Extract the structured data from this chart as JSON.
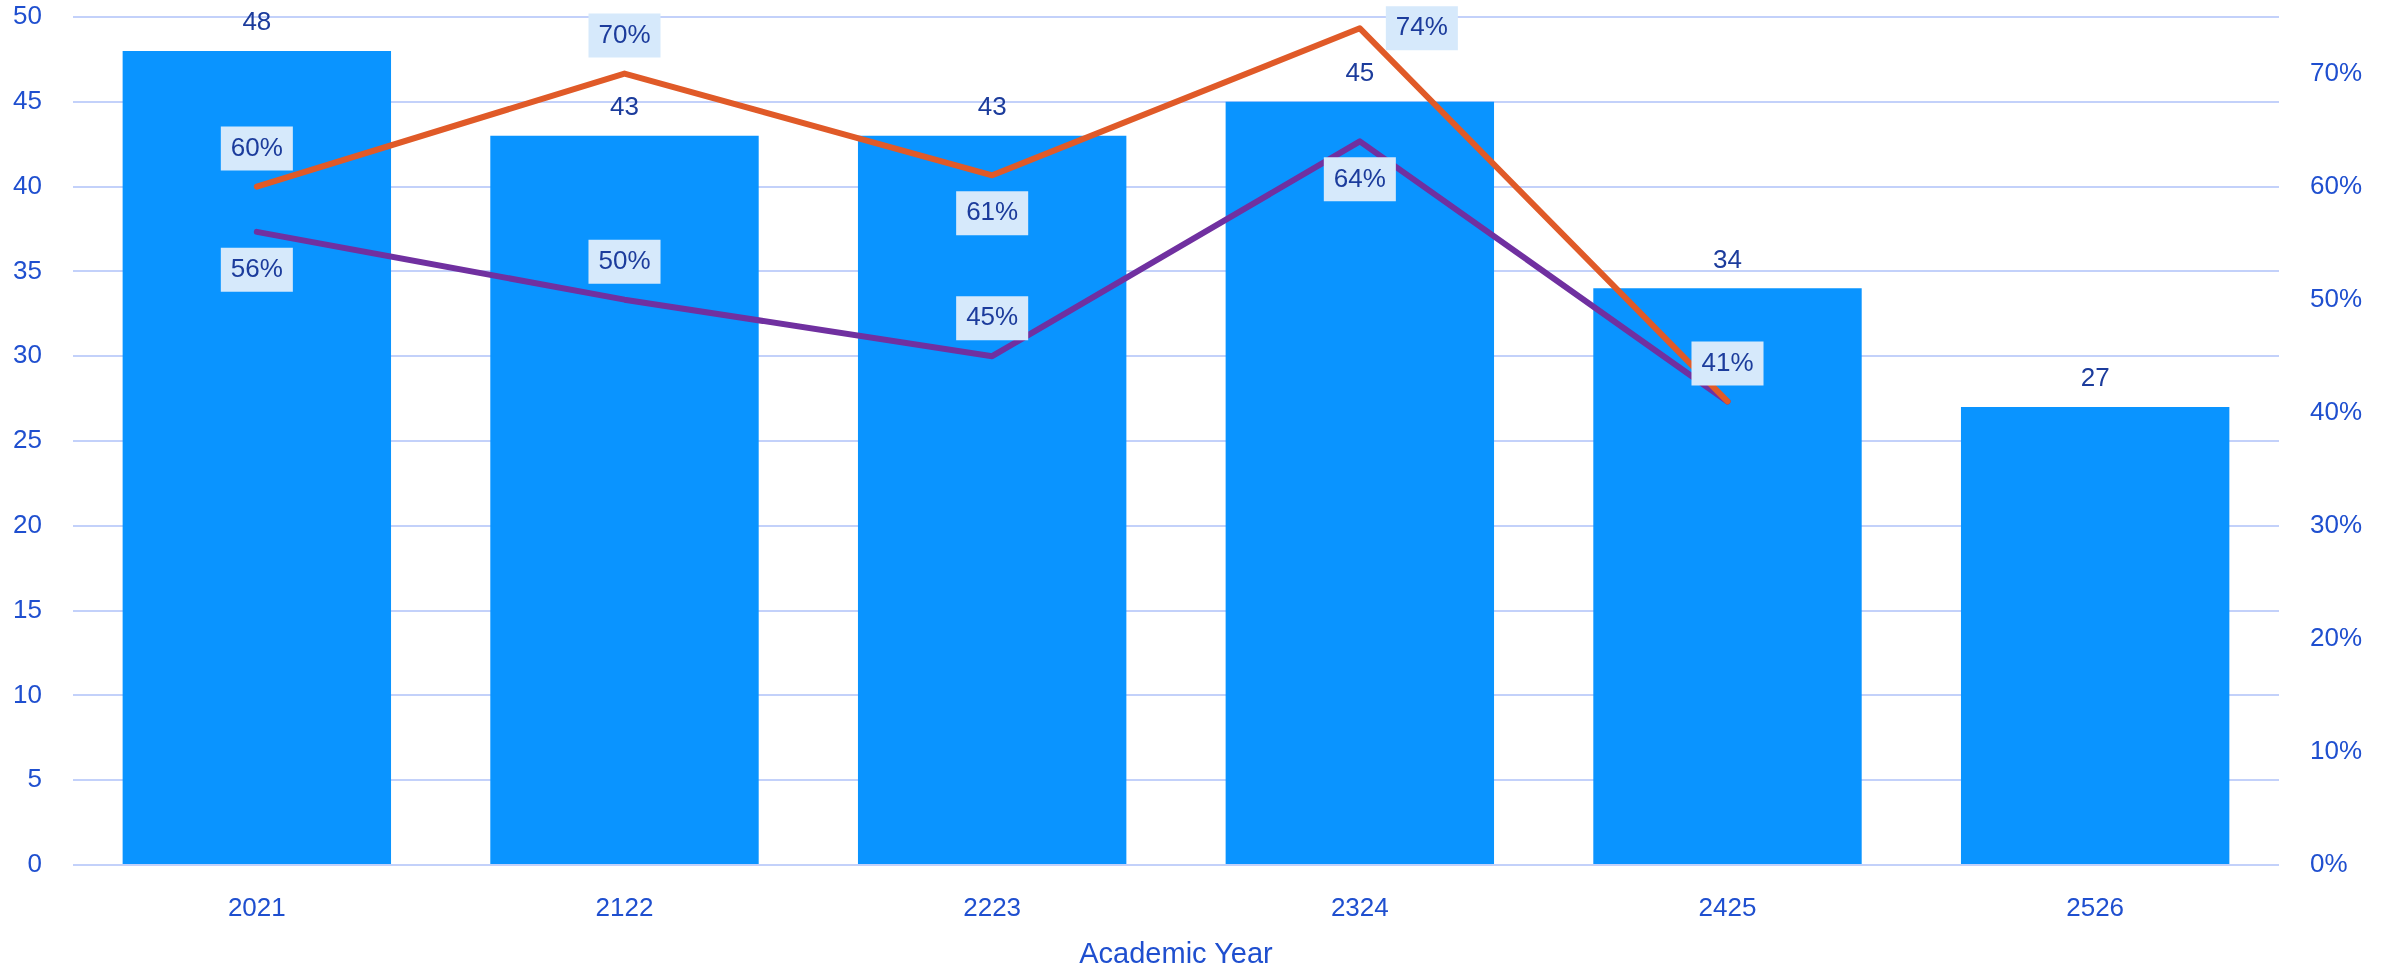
{
  "chart_data": {
    "type": "bar",
    "xlabel": "Academic Year",
    "categories": [
      "2021",
      "2122",
      "2223",
      "2324",
      "2425",
      "2526"
    ],
    "series": [
      {
        "color": "#0a94ff",
        "values": [
          48,
          43,
          43,
          45,
          34,
          27
        ],
        "value_labels": [
          "48",
          "43",
          "43",
          "45",
          "34",
          "27"
        ]
      },
      {
        "type": "line",
        "axis": "y2",
        "color": "#e05a28",
        "values": [
          60,
          70,
          61,
          74,
          41,
          null
        ],
        "value_labels": [
          "60%",
          "70%",
          "61%",
          "74%",
          null,
          null
        ]
      },
      {
        "type": "line",
        "axis": "y2",
        "color": "#7030a0",
        "values": [
          56,
          50,
          45,
          64,
          41,
          null
        ],
        "value_labels": [
          "56%",
          "50%",
          "45%",
          "64%",
          "41%",
          null
        ]
      }
    ],
    "ylim": [
      0,
      50
    ],
    "yticks": [
      0,
      5,
      10,
      15,
      20,
      25,
      30,
      35,
      40,
      45,
      50
    ],
    "y2lim": [
      0,
      75
    ],
    "y2ticks": [
      {
        "value": 0,
        "label": "0%"
      },
      {
        "value": 10,
        "label": "10%"
      },
      {
        "value": 20,
        "label": "20%"
      },
      {
        "value": 30,
        "label": "30%"
      },
      {
        "value": 40,
        "label": "40%"
      },
      {
        "value": 50,
        "label": "50%"
      },
      {
        "value": 60,
        "label": "60%"
      },
      {
        "value": 70,
        "label": "70%"
      }
    ],
    "grid": "y",
    "legend": false,
    "marker": "none",
    "line_style": "solid"
  }
}
